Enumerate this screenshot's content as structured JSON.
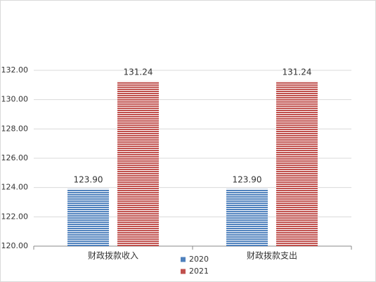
{
  "chart_data": {
    "type": "bar",
    "categories": [
      "财政拨款收入",
      "财政拨款支出"
    ],
    "series": [
      {
        "name": "2020",
        "color": "#4f81bd",
        "values": [
          123.9,
          123.9
        ],
        "value_labels": [
          "123.90",
          "123.90"
        ]
      },
      {
        "name": "2021",
        "color": "#c0504d",
        "values": [
          131.24,
          131.24
        ],
        "value_labels": [
          "131.24",
          "131.24"
        ]
      }
    ],
    "ylim": [
      120,
      132
    ],
    "yticks": [
      {
        "value": 120,
        "label": "120.00"
      },
      {
        "value": 122,
        "label": "122.00"
      },
      {
        "value": 124,
        "label": "124.00"
      },
      {
        "value": 126,
        "label": "126.00"
      },
      {
        "value": 128,
        "label": "128.00"
      },
      {
        "value": 130,
        "label": "130.00"
      },
      {
        "value": 132,
        "label": "132.00"
      }
    ],
    "grid": true
  }
}
